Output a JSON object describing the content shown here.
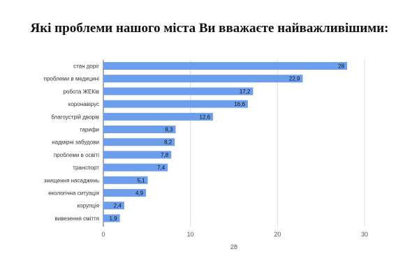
{
  "chart_data": {
    "type": "bar",
    "orientation": "horizontal",
    "title": "Які проблеми нашого міста Ви вважаєте найважливішими:",
    "xlabel": "28",
    "ylabel": "",
    "categories": [
      "стан доріг",
      "проблеми в медицині",
      "робота ЖЕКів",
      "коронавірус",
      "благоустрій дворів",
      "тарифи",
      "надмірні забудови",
      "проблеми в освіті",
      "транспорт",
      "знищення насаджень",
      "екологічна ситуація",
      "корупція",
      "вивезення сміття"
    ],
    "values": [
      28,
      22.9,
      17.2,
      16.6,
      12.6,
      8.3,
      8.2,
      7.8,
      7.4,
      5.1,
      4.9,
      2.4,
      1.9
    ],
    "value_labels": [
      "28",
      "22,9",
      "17,2",
      "16,6",
      "12,6",
      "8,3",
      "8,2",
      "7,8",
      "7,4",
      "5,1",
      "4,9",
      "2,4",
      "1,9"
    ],
    "xticks": [
      "0",
      "10",
      "20",
      "30"
    ],
    "xlim": [
      0,
      30
    ],
    "grid": true,
    "legend": "none",
    "bar_color": "#6d9eeb"
  }
}
